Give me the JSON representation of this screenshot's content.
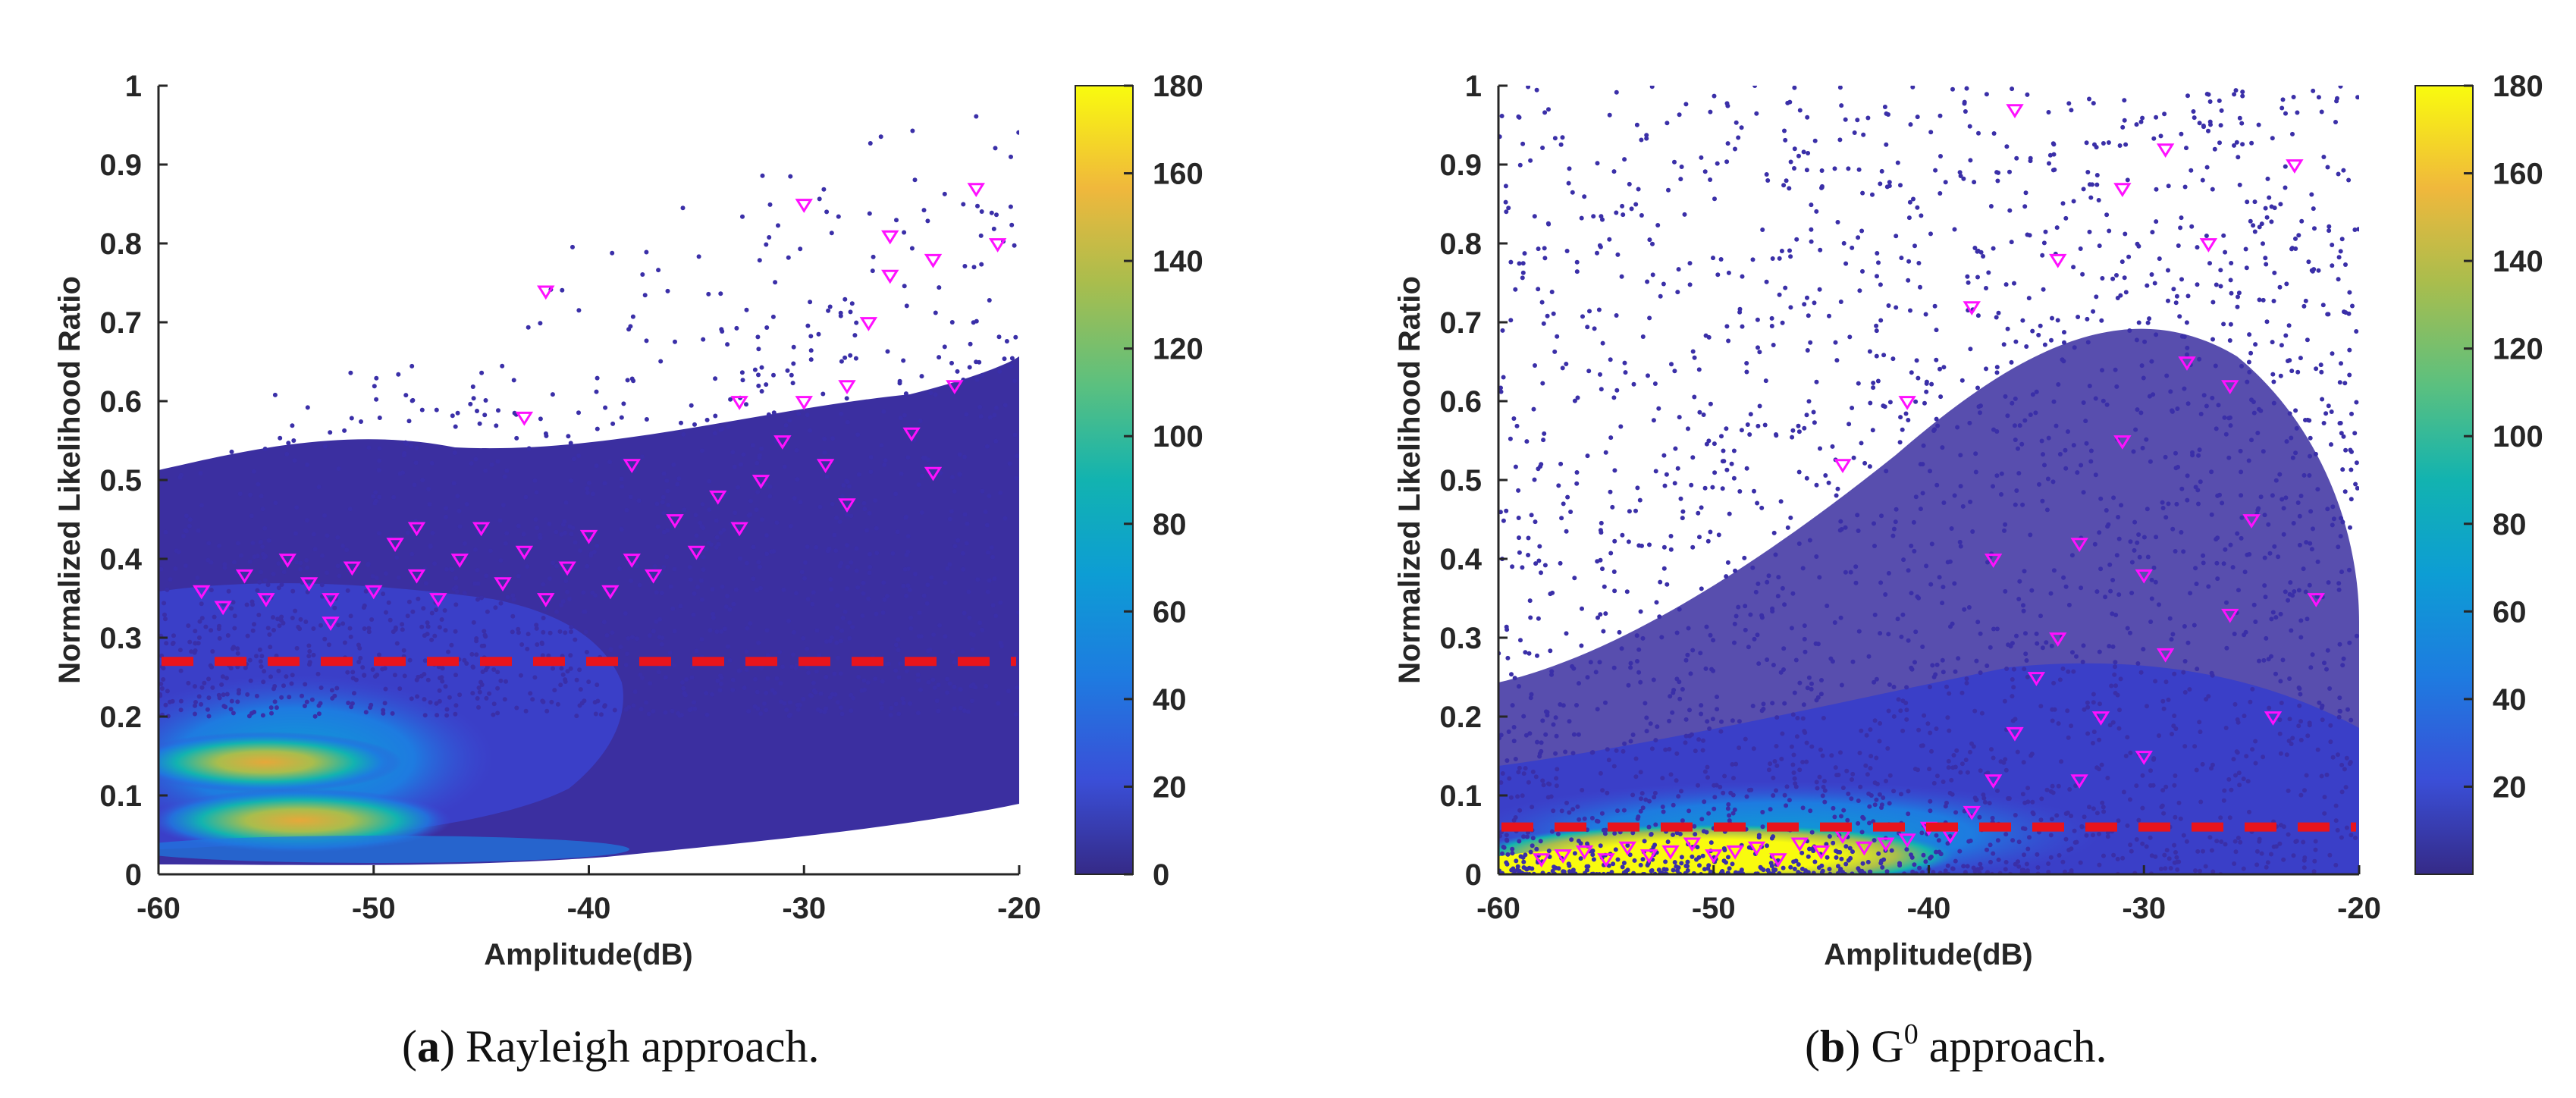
{
  "chart_data": [
    {
      "type": "scatter",
      "panel": "a",
      "caption_label": "a",
      "caption_text": "Rayleigh approach.",
      "xlabel": "Amplitude(dB)",
      "ylabel": "Normalized Likelihood Ratio",
      "xlim": [
        -60,
        -20
      ],
      "ylim": [
        0,
        1
      ],
      "xticks": [
        -60,
        -50,
        -40,
        -30,
        -20
      ],
      "yticks": [
        0,
        0.1,
        0.2,
        0.3,
        0.4,
        0.5,
        0.6,
        0.7,
        0.8,
        0.9,
        1
      ],
      "ytick_labels": [
        "0",
        "0.1",
        "0.2",
        "0.3",
        "0.4",
        "0.5",
        "0.6",
        "0.7",
        "0.8",
        "0.9",
        "1"
      ],
      "threshold": {
        "y": 0.27,
        "color": "#e8141c",
        "style": "dashed"
      },
      "colorbar": {
        "min": 0,
        "max": 180,
        "ticks": [
          0,
          20,
          40,
          60,
          80,
          100,
          120,
          140,
          160,
          180
        ],
        "colormap": "parula"
      },
      "density": {
        "description": "point density colour (counts), dense clusters at low amplitude",
        "clusters": [
          {
            "x": -54,
            "y": 0.14,
            "count": 150
          },
          {
            "x": -53,
            "y": 0.075,
            "count": 140
          },
          {
            "x": -50,
            "y": 0.03,
            "count": 60
          },
          {
            "x": -45,
            "y": 0.09,
            "count": 40
          }
        ]
      },
      "target_points": {
        "marker": "triangle-down",
        "color": "#ff10ff",
        "summary": "targets concentrated 0.3-0.45 for -60 to -35 dB, spreading up to 0.9 near -20 dB",
        "points": [
          [
            -58,
            0.36
          ],
          [
            -57,
            0.34
          ],
          [
            -56,
            0.38
          ],
          [
            -55,
            0.35
          ],
          [
            -54,
            0.4
          ],
          [
            -53,
            0.37
          ],
          [
            -52,
            0.35
          ],
          [
            -51,
            0.39
          ],
          [
            -50,
            0.36
          ],
          [
            -49,
            0.42
          ],
          [
            -48,
            0.38
          ],
          [
            -47,
            0.35
          ],
          [
            -46,
            0.4
          ],
          [
            -45,
            0.44
          ],
          [
            -44,
            0.37
          ],
          [
            -43,
            0.41
          ],
          [
            -42,
            0.35
          ],
          [
            -41,
            0.39
          ],
          [
            -40,
            0.43
          ],
          [
            -39,
            0.36
          ],
          [
            -38,
            0.4
          ],
          [
            -37,
            0.38
          ],
          [
            -36,
            0.45
          ],
          [
            -35,
            0.41
          ],
          [
            -34,
            0.48
          ],
          [
            -33,
            0.44
          ],
          [
            -32,
            0.5
          ],
          [
            -31,
            0.55
          ],
          [
            -30,
            0.6
          ],
          [
            -29,
            0.52
          ],
          [
            -28,
            0.62
          ],
          [
            -27,
            0.7
          ],
          [
            -26,
            0.76
          ],
          [
            -25,
            0.56
          ],
          [
            -24,
            0.78
          ],
          [
            -23,
            0.62
          ],
          [
            -22,
            0.87
          ],
          [
            -21,
            0.8
          ],
          [
            -30,
            0.85
          ],
          [
            -42,
            0.74
          ],
          [
            -43,
            0.58
          ],
          [
            -26,
            0.81
          ],
          [
            -24,
            0.51
          ],
          [
            -28,
            0.47
          ],
          [
            -33,
            0.6
          ],
          [
            -38,
            0.52
          ],
          [
            -48,
            0.44
          ],
          [
            -52,
            0.32
          ]
        ]
      }
    },
    {
      "type": "scatter",
      "panel": "b",
      "caption_label": "b",
      "caption_text_main": "G",
      "caption_superscript": "0",
      "caption_text_rest": "approach.",
      "xlabel": "Amplitude(dB)",
      "ylabel": "Normalized Likelihood Ratio",
      "xlim": [
        -60,
        -20
      ],
      "ylim": [
        0,
        1
      ],
      "xticks": [
        -60,
        -50,
        -40,
        -30,
        -20
      ],
      "yticks": [
        0,
        0.1,
        0.2,
        0.3,
        0.4,
        0.5,
        0.6,
        0.7,
        0.8,
        0.9,
        1
      ],
      "ytick_labels": [
        "0",
        "0.1",
        "0.2",
        "0.3",
        "0.4",
        "0.5",
        "0.6",
        "0.7",
        "0.8",
        "0.9",
        "1"
      ],
      "threshold": {
        "y": 0.06,
        "color": "#e8141c",
        "style": "dashed"
      },
      "colorbar": {
        "min": 0,
        "max": 180,
        "ticks": [
          20,
          40,
          60,
          80,
          100,
          120,
          140,
          160,
          180
        ],
        "colormap": "parula"
      },
      "density": {
        "description": "dense yellow band along the bottom (0-0.06), sparse points spread to 1",
        "clusters": [
          {
            "x": -55,
            "y": 0.02,
            "count": 180
          },
          {
            "x": -48,
            "y": 0.03,
            "count": 170
          },
          {
            "x": -42,
            "y": 0.04,
            "count": 120
          },
          {
            "x": -36,
            "y": 0.06,
            "count": 60
          }
        ]
      },
      "target_points": {
        "marker": "triangle-down",
        "color": "#ff10ff",
        "summary": "targets mostly along the bottom band near 0.02-0.05, scattered up to 0.97 between -45 and -20 dB",
        "points": [
          [
            -58,
            0.02
          ],
          [
            -57,
            0.025
          ],
          [
            -56,
            0.03
          ],
          [
            -55,
            0.02
          ],
          [
            -54,
            0.035
          ],
          [
            -53,
            0.025
          ],
          [
            -52,
            0.03
          ],
          [
            -51,
            0.04
          ],
          [
            -50,
            0.025
          ],
          [
            -49,
            0.03
          ],
          [
            -48,
            0.035
          ],
          [
            -47,
            0.02
          ],
          [
            -46,
            0.04
          ],
          [
            -45,
            0.03
          ],
          [
            -44,
            0.05
          ],
          [
            -43,
            0.035
          ],
          [
            -42,
            0.04
          ],
          [
            -41,
            0.045
          ],
          [
            -40,
            0.06
          ],
          [
            -39,
            0.05
          ],
          [
            -38,
            0.08
          ],
          [
            -37,
            0.12
          ],
          [
            -36,
            0.18
          ],
          [
            -35,
            0.25
          ],
          [
            -34,
            0.3
          ],
          [
            -33,
            0.42
          ],
          [
            -32,
            0.2
          ],
          [
            -31,
            0.55
          ],
          [
            -30,
            0.38
          ],
          [
            -29,
            0.28
          ],
          [
            -28,
            0.65
          ],
          [
            -27,
            0.8
          ],
          [
            -26,
            0.33
          ],
          [
            -25,
            0.45
          ],
          [
            -24,
            0.2
          ],
          [
            -23,
            0.9
          ],
          [
            -22,
            0.35
          ],
          [
            -36,
            0.97
          ],
          [
            -34,
            0.78
          ],
          [
            -31,
            0.87
          ],
          [
            -38,
            0.72
          ],
          [
            -41,
            0.6
          ],
          [
            -44,
            0.52
          ],
          [
            -29,
            0.92
          ],
          [
            -26,
            0.62
          ],
          [
            -33,
            0.12
          ],
          [
            -30,
            0.15
          ],
          [
            -37,
            0.4
          ]
        ]
      }
    }
  ]
}
